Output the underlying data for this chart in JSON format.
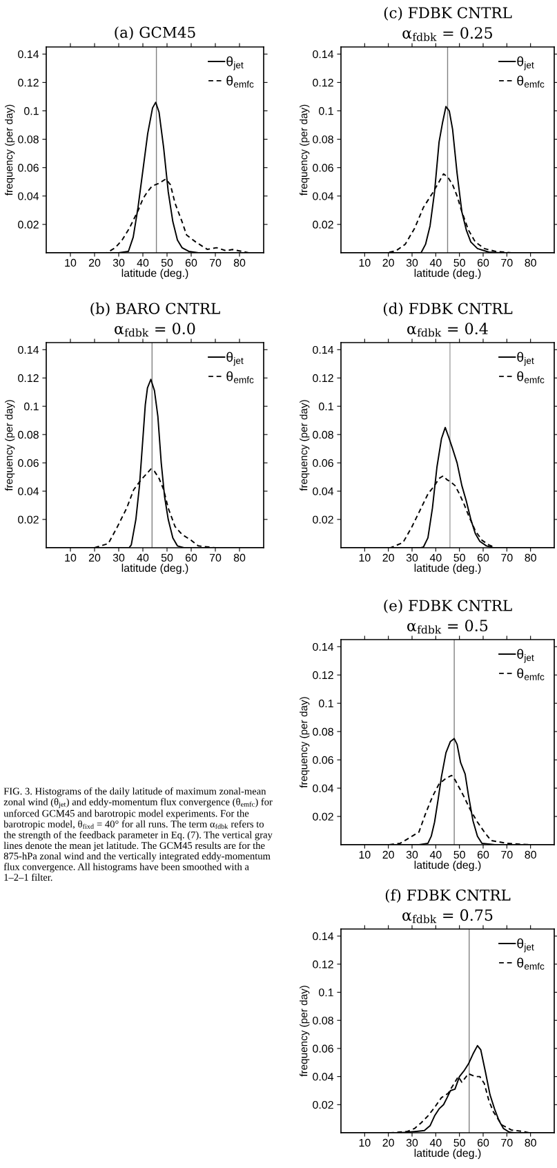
{
  "chart_data": [
    {
      "type": "line",
      "title": "(a) GCM45",
      "xlabel": "latitude (deg.)",
      "ylabel": "frequency (per day)",
      "xlim": [
        0,
        90
      ],
      "ylim": [
        0,
        0.145
      ],
      "xticks": [
        10,
        20,
        30,
        40,
        50,
        60,
        70,
        80
      ],
      "yticks": [
        0.02,
        0.04,
        0.06,
        0.08,
        0.1,
        0.12,
        0.14
      ],
      "legend": "top right",
      "ref_lines": [
        {
          "axis": "x",
          "value": 45.6,
          "color": "#808080"
        }
      ],
      "series": [
        {
          "name": "θ$_{jet}$",
          "color": "#000000",
          "line_style": "solid",
          "x": [
            0,
            30,
            34,
            36,
            38,
            40,
            42,
            44,
            45.3,
            46.7,
            48.6,
            50.5,
            52.4,
            54.3,
            56.2,
            59,
            63,
            90
          ],
          "values": [
            0,
            0,
            0.001,
            0.011,
            0.032,
            0.058,
            0.084,
            0.102,
            0.106,
            0.099,
            0.074,
            0.043,
            0.022,
            0.009,
            0.0036,
            0.001,
            0,
            0
          ]
        },
        {
          "name": "θ$_{emfc}$",
          "color": "#000000",
          "line_style": "dashed",
          "x": [
            0,
            25,
            28.6,
            31.4,
            34.3,
            38.1,
            40,
            41.9,
            43.8,
            46.7,
            49.5,
            51.4,
            53.3,
            56.2,
            58.1,
            61.9,
            66.7,
            70.5,
            74.3,
            77.1,
            81,
            83.8,
            90
          ],
          "values": [
            0,
            0,
            0.0036,
            0.009,
            0.017,
            0.03,
            0.038,
            0.043,
            0.047,
            0.049,
            0.052,
            0.048,
            0.035,
            0.022,
            0.0125,
            0.0076,
            0.0024,
            0.0036,
            0.0015,
            0.0023,
            0.001,
            0,
            0
          ]
        }
      ]
    },
    {
      "type": "line",
      "title": "(c) FDBK CNTRL",
      "subtitle": "α$_{fdbk}$ = 0.25",
      "xlabel": "latitude (deg.)",
      "ylabel": "frequency (per day)",
      "xlim": [
        0,
        90
      ],
      "ylim": [
        0,
        0.145
      ],
      "xticks": [
        10,
        20,
        30,
        40,
        50,
        60,
        70,
        80
      ],
      "yticks": [
        0.02,
        0.04,
        0.06,
        0.08,
        0.1,
        0.12,
        0.14
      ],
      "legend": "top right",
      "ref_lines": [
        {
          "axis": "x",
          "value": 45.0,
          "color": "#808080"
        }
      ],
      "series": [
        {
          "name": "θ$_{jet}$",
          "color": "#000000",
          "line_style": "solid",
          "x": [
            0,
            33.8,
            35.7,
            37.6,
            39.5,
            41.4,
            42.9,
            44.3,
            45.7,
            47.1,
            49,
            51,
            52.9,
            54.8,
            57.6,
            62.4,
            67,
            90
          ],
          "values": [
            0,
            0,
            0.006,
            0.019,
            0.043,
            0.078,
            0.092,
            0.103,
            0.1,
            0.087,
            0.056,
            0.029,
            0.016,
            0.0076,
            0.003,
            0.0005,
            0,
            0
          ]
        },
        {
          "name": "θ$_{emfc}$",
          "color": "#000000",
          "line_style": "dashed",
          "x": [
            0,
            19.5,
            23.3,
            27.1,
            31,
            34.8,
            38.6,
            41.4,
            43.3,
            45.2,
            47.1,
            49,
            51,
            53.8,
            56.7,
            60.5,
            65.2,
            71.9,
            90
          ],
          "values": [
            0,
            0,
            0.0015,
            0.006,
            0.017,
            0.032,
            0.042,
            0.05,
            0.0556,
            0.053,
            0.048,
            0.04,
            0.029,
            0.016,
            0.0076,
            0.003,
            0.001,
            0,
            0
          ]
        }
      ]
    },
    {
      "type": "line",
      "title": "(b) BARO CNTRL",
      "subtitle": "α$_{fdbk}$ = 0.0",
      "xlabel": "latitude (deg.)",
      "ylabel": "frequency (per day)",
      "xlim": [
        0,
        90
      ],
      "ylim": [
        0,
        0.145
      ],
      "xticks": [
        10,
        20,
        30,
        40,
        50,
        60,
        70,
        80
      ],
      "yticks": [
        0.02,
        0.04,
        0.06,
        0.08,
        0.1,
        0.12,
        0.14
      ],
      "legend": "top right",
      "ref_lines": [
        {
          "axis": "x",
          "value": 43.8,
          "color": "#808080"
        }
      ],
      "series": [
        {
          "name": "θ$_{jet}$",
          "color": "#000000",
          "line_style": "solid",
          "x": [
            0,
            34.3,
            35.2,
            37.1,
            38.6,
            40,
            41,
            41.9,
            43.3,
            44.8,
            46.2,
            47.6,
            49,
            50.5,
            52.4,
            54.3,
            57,
            90
          ],
          "values": [
            0,
            0,
            0.002,
            0.02,
            0.044,
            0.077,
            0.101,
            0.113,
            0.119,
            0.111,
            0.093,
            0.06,
            0.036,
            0.02,
            0.007,
            0.0013,
            0,
            0
          ]
        },
        {
          "name": "θ$_{emfc}$",
          "color": "#000000",
          "line_style": "dashed",
          "x": [
            0,
            20,
            25.7,
            29.5,
            33.3,
            36.2,
            39,
            41.4,
            43.3,
            44.8,
            46.7,
            48.6,
            50.5,
            53.3,
            56.2,
            60,
            62.9,
            70,
            90
          ],
          "values": [
            0,
            0,
            0.003,
            0.015,
            0.028,
            0.041,
            0.0475,
            0.052,
            0.0556,
            0.054,
            0.049,
            0.041,
            0.028,
            0.015,
            0.0094,
            0.0053,
            0.0013,
            0,
            0
          ]
        }
      ]
    },
    {
      "type": "line",
      "title": "(d) FDBK CNTRL",
      "subtitle": "α$_{fdbk}$ = 0.4",
      "xlabel": "latitude (deg.)",
      "ylabel": "frequency (per day)",
      "xlim": [
        0,
        90
      ],
      "ylim": [
        0,
        0.145
      ],
      "xticks": [
        10,
        20,
        30,
        40,
        50,
        60,
        70,
        80
      ],
      "yticks": [
        0.02,
        0.04,
        0.06,
        0.08,
        0.1,
        0.12,
        0.14
      ],
      "legend": "top right",
      "ref_lines": [
        {
          "axis": "x",
          "value": 46.0,
          "color": "#a0a0a0"
        }
      ],
      "series": [
        {
          "name": "θ$_{jet}$",
          "color": "#000000",
          "line_style": "solid",
          "x": [
            0,
            33.8,
            34.8,
            36.7,
            38.6,
            40.5,
            42.4,
            44,
            45.7,
            47.1,
            49,
            51,
            52.9,
            54.8,
            56.7,
            58.6,
            61.4,
            64.3,
            90
          ],
          "values": [
            0,
            0,
            0.0005,
            0.007,
            0.028,
            0.057,
            0.077,
            0.085,
            0.077,
            0.07,
            0.06,
            0.044,
            0.033,
            0.02,
            0.01,
            0.0045,
            0.0013,
            0,
            0
          ]
        },
        {
          "name": "θ$_{emfc}$",
          "color": "#000000",
          "line_style": "dashed",
          "x": [
            0,
            21,
            26.2,
            30,
            33.8,
            36.7,
            39.5,
            41.4,
            43.1,
            44.8,
            46.2,
            48.1,
            50,
            51.9,
            53.8,
            56.7,
            59.5,
            62.4,
            65.2,
            90
          ],
          "values": [
            0,
            0,
            0.0037,
            0.015,
            0.028,
            0.038,
            0.044,
            0.049,
            0.0508,
            0.048,
            0.0467,
            0.044,
            0.038,
            0.031,
            0.023,
            0.012,
            0.0053,
            0.002,
            0,
            0
          ]
        }
      ]
    },
    {
      "type": "line",
      "title": "(e) FDBK CNTRL",
      "subtitle": "α$_{fdbk}$ = 0.5",
      "xlabel": "latitude (deg.)",
      "ylabel": "frequency (per day)",
      "xlim": [
        0,
        90
      ],
      "ylim": [
        0,
        0.145
      ],
      "xticks": [
        10,
        20,
        30,
        40,
        50,
        60,
        70,
        80
      ],
      "yticks": [
        0.02,
        0.04,
        0.06,
        0.08,
        0.1,
        0.12,
        0.14
      ],
      "legend": "top right",
      "ref_lines": [
        {
          "axis": "x",
          "value": 47.8,
          "color": "#808080"
        }
      ],
      "series": [
        {
          "name": "θ$_{jet}$",
          "color": "#000000",
          "line_style": "solid",
          "x": [
            0,
            33,
            36.7,
            38.1,
            39.5,
            41,
            42.4,
            44.3,
            46.2,
            47.8,
            49,
            50.5,
            52.4,
            53.8,
            55.7,
            57.6,
            59.5,
            65,
            90
          ],
          "values": [
            0,
            0,
            0.001,
            0.006,
            0.016,
            0.032,
            0.048,
            0.065,
            0.073,
            0.075,
            0.071,
            0.058,
            0.05,
            0.035,
            0.017,
            0.006,
            0.001,
            0,
            0
          ]
        },
        {
          "name": "θ$_{emfc}$",
          "color": "#000000",
          "line_style": "dashed",
          "x": [
            0,
            20,
            25,
            28,
            32.9,
            35.7,
            38.6,
            41.4,
            44.3,
            46.7,
            48.1,
            50,
            51.9,
            54.8,
            57.6,
            60.5,
            63.3,
            70,
            80,
            90
          ],
          "values": [
            0,
            0,
            0.001,
            0.004,
            0.009,
            0.022,
            0.034,
            0.043,
            0.047,
            0.049,
            0.046,
            0.04,
            0.034,
            0.024,
            0.016,
            0.009,
            0.003,
            0.001,
            0,
            0
          ]
        }
      ]
    },
    {
      "type": "line",
      "title": "(f) FDBK CNTRL",
      "subtitle": "α$_{fdbk}$ = 0.75",
      "xlabel": "latitude (deg.)",
      "ylabel": "frequency (per day)",
      "xlim": [
        0,
        90
      ],
      "ylim": [
        0,
        0.145
      ],
      "xticks": [
        10,
        20,
        30,
        40,
        50,
        60,
        70,
        80
      ],
      "yticks": [
        0.02,
        0.04,
        0.06,
        0.08,
        0.1,
        0.12,
        0.14
      ],
      "legend": "top right",
      "ref_lines": [
        {
          "axis": "x",
          "value": 54.1,
          "color": "#808080"
        }
      ],
      "series": [
        {
          "name": "θ$_{jet}$",
          "color": "#000000",
          "line_style": "solid",
          "x": [
            0,
            25.2,
            31.9,
            35.2,
            37.6,
            39.5,
            41.4,
            43.3,
            44.8,
            46.2,
            48.1,
            50,
            51.9,
            53.8,
            55.7,
            57.6,
            59,
            61,
            62.9,
            64.8,
            66.7,
            68.6,
            71,
            72.9,
            90
          ],
          "values": [
            0,
            0,
            0.001,
            0.0016,
            0.005,
            0.012,
            0.017,
            0.02,
            0.025,
            0.03,
            0.031,
            0.04,
            0.044,
            0.049,
            0.056,
            0.062,
            0.059,
            0.043,
            0.027,
            0.017,
            0.0086,
            0.003,
            0.0005,
            0,
            0
          ]
        },
        {
          "name": "θ$_{emfc}$",
          "color": "#000000",
          "line_style": "dashed",
          "x": [
            0,
            21,
            28.1,
            31,
            33.8,
            36.7,
            39.5,
            42.4,
            45.2,
            48.1,
            49.5,
            51,
            53.8,
            56.7,
            58.6,
            60.5,
            62.4,
            64.3,
            66.2,
            68.1,
            71.9,
            76.7,
            79.5,
            90
          ],
          "values": [
            0,
            0,
            0.001,
            0.003,
            0.007,
            0.012,
            0.018,
            0.025,
            0.028,
            0.036,
            0.04,
            0.036,
            0.042,
            0.04,
            0.04,
            0.035,
            0.023,
            0.015,
            0.01,
            0.0054,
            0.002,
            0.001,
            0,
            0
          ]
        }
      ]
    },
    {
      "type": "other",
      "annotations": [
        "FIG. 3. Histograms of the daily latitude of maximum zonal-mean zonal wind (θ$_{jet}$) and eddy-momentum flux convergence (θ$_{emfc}$) for unforced GCM45 and barotropic model experiments. For the barotropic model, θ$_{fixd}$ = 40° for all runs. The term α$_{fdbk}$ refers to the strength of the feedback parameter in Eq. (7). The vertical gray lines denote the mean jet latitude. The GCM45 results are for the 875-hPa zonal wind and the vertically integrated eddy-momentum flux convergence. All histograms have been smoothed with a 1–2–1 filter."
      ]
    }
  ]
}
